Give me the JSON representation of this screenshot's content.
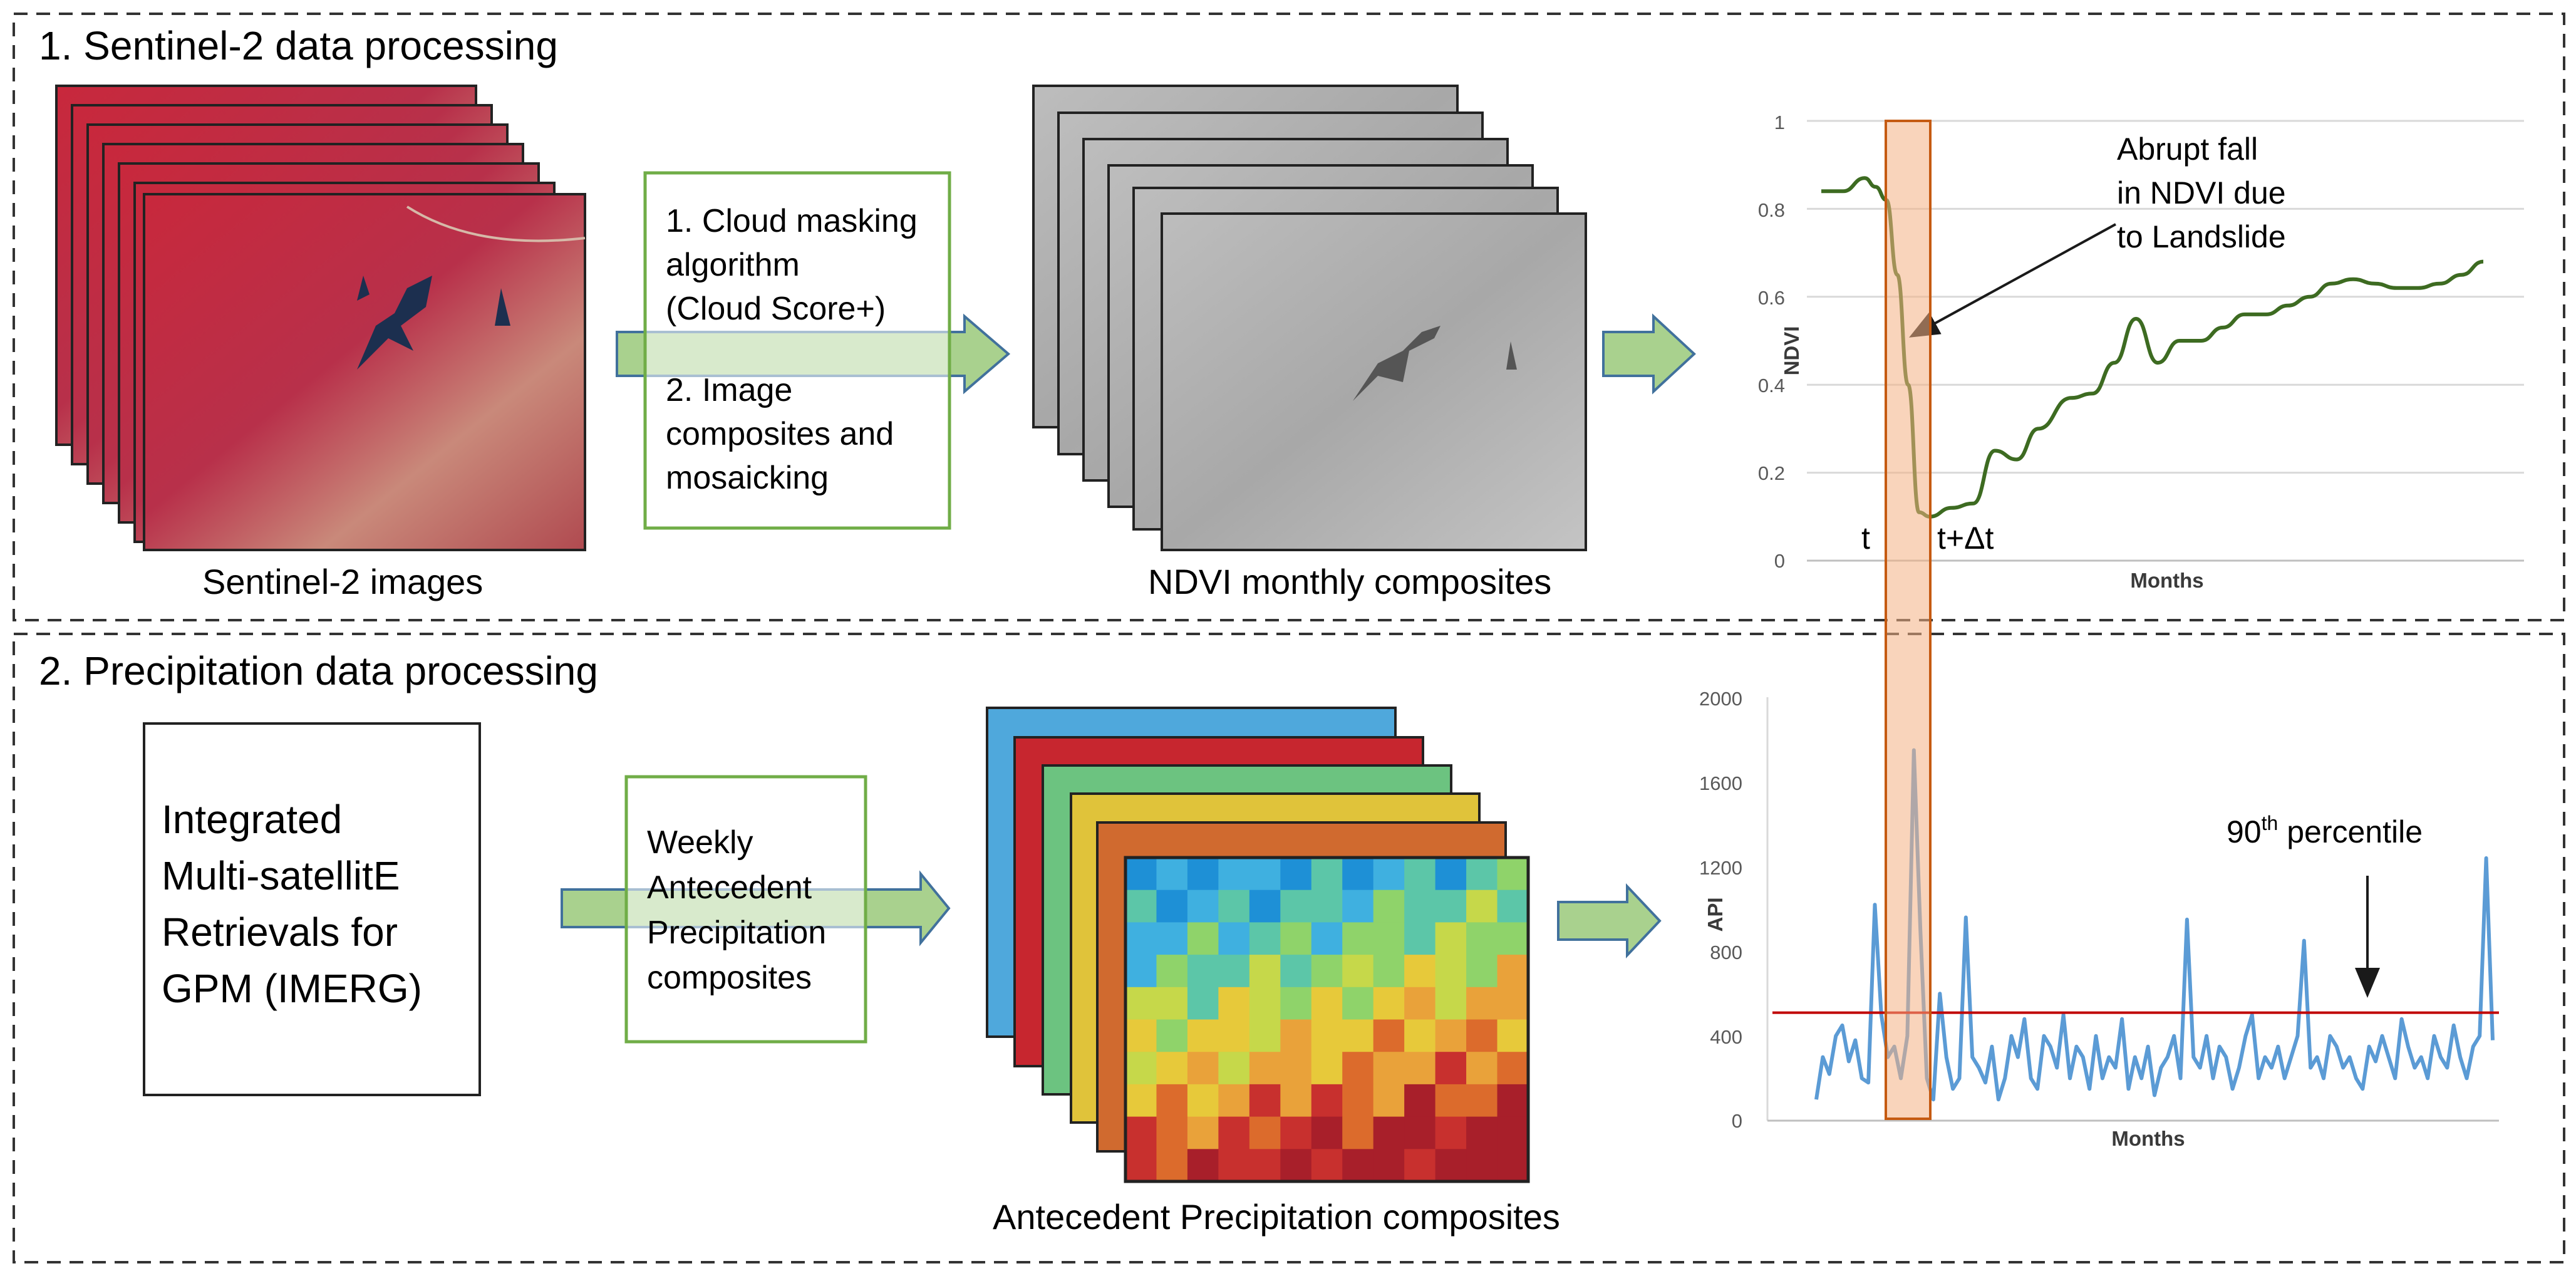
{
  "section1": {
    "title": "1. Sentinel-2 data processing",
    "sentinel_caption": "Sentinel-2 images",
    "steps": [
      "1. Cloud masking",
      "algorithm",
      "(Cloud Score+)",
      "2. Image",
      "composites and",
      "mosaicking"
    ],
    "ndvi_caption": "NDVI monthly composites"
  },
  "section2": {
    "title": "2. Precipitation data processing",
    "imerg_lines": [
      "Integrated",
      "Multi-satellitE",
      "Retrievals for",
      "GPM (IMERG)"
    ],
    "weekly_lines": [
      "Weekly",
      "Antecedent",
      "Precipitation",
      "composites"
    ],
    "antecedent_caption": "Antecedent Precipitation composites"
  },
  "ndvi_chart": {
    "type": "line",
    "ylabel": "NDVI",
    "xlabel": "Months",
    "yticks": [
      "0",
      "0.2",
      "0.4",
      "0.6",
      "0.8",
      "1"
    ],
    "ylim": [
      0,
      1
    ],
    "annotation_lines": [
      "Abrupt fall",
      "in NDVI due",
      "to Landslide"
    ],
    "t_label": "t",
    "t_dt_label": "t+Δt",
    "series_color": "#3d6b21",
    "x": [
      0,
      2,
      4,
      5,
      6,
      7,
      8,
      9,
      10,
      12,
      14,
      16,
      18,
      20,
      23,
      25,
      27,
      29,
      31,
      33,
      35,
      37,
      39,
      41,
      43,
      45,
      47,
      49,
      51,
      53,
      55,
      57,
      59,
      61
    ],
    "values": [
      0.84,
      0.84,
      0.87,
      0.85,
      0.82,
      0.65,
      0.4,
      0.11,
      0.1,
      0.12,
      0.13,
      0.25,
      0.23,
      0.3,
      0.37,
      0.38,
      0.45,
      0.55,
      0.45,
      0.5,
      0.5,
      0.53,
      0.56,
      0.56,
      0.58,
      0.6,
      0.63,
      0.64,
      0.63,
      0.62,
      0.62,
      0.63,
      0.65,
      0.68
    ]
  },
  "api_chart": {
    "type": "line",
    "ylabel": "API",
    "xlabel": "Months",
    "yticks": [
      "0",
      "400",
      "800",
      "1200",
      "1600",
      "2000"
    ],
    "ylim": [
      0,
      2000
    ],
    "threshold_value": 510,
    "threshold_label": "90",
    "threshold_label_sup": "th",
    "threshold_label_rest": " percentile",
    "series_color": "#5b9bd5",
    "threshold_color": "#c00000",
    "values": [
      100,
      300,
      220,
      400,
      450,
      280,
      380,
      200,
      180,
      1020,
      500,
      300,
      350,
      200,
      400,
      1750,
      900,
      200,
      100,
      600,
      300,
      150,
      200,
      960,
      300,
      250,
      180,
      350,
      100,
      200,
      400,
      300,
      480,
      200,
      150,
      400,
      350,
      250,
      500,
      200,
      350,
      300,
      150,
      400,
      200,
      300,
      250,
      480,
      150,
      300,
      200,
      350,
      120,
      250,
      300,
      400,
      200,
      950,
      300,
      250,
      400,
      200,
      350,
      300,
      150,
      250,
      400,
      500,
      200,
      300,
      250,
      350,
      200,
      300,
      400,
      850,
      250,
      300,
      200,
      400,
      350,
      250,
      300,
      200,
      150,
      350,
      280,
      400,
      300,
      200,
      480,
      350,
      250,
      300,
      200,
      400,
      300,
      250,
      450,
      300,
      200,
      350,
      400,
      1240,
      380
    ]
  },
  "colors": {
    "dashed_border": "#333333",
    "step_box": "#70ad47",
    "arrow_fill": "#a9d18e",
    "arrow_stroke": "#41719c",
    "highlight_fill": "#f4b183",
    "highlight_stroke": "#c55a11"
  }
}
